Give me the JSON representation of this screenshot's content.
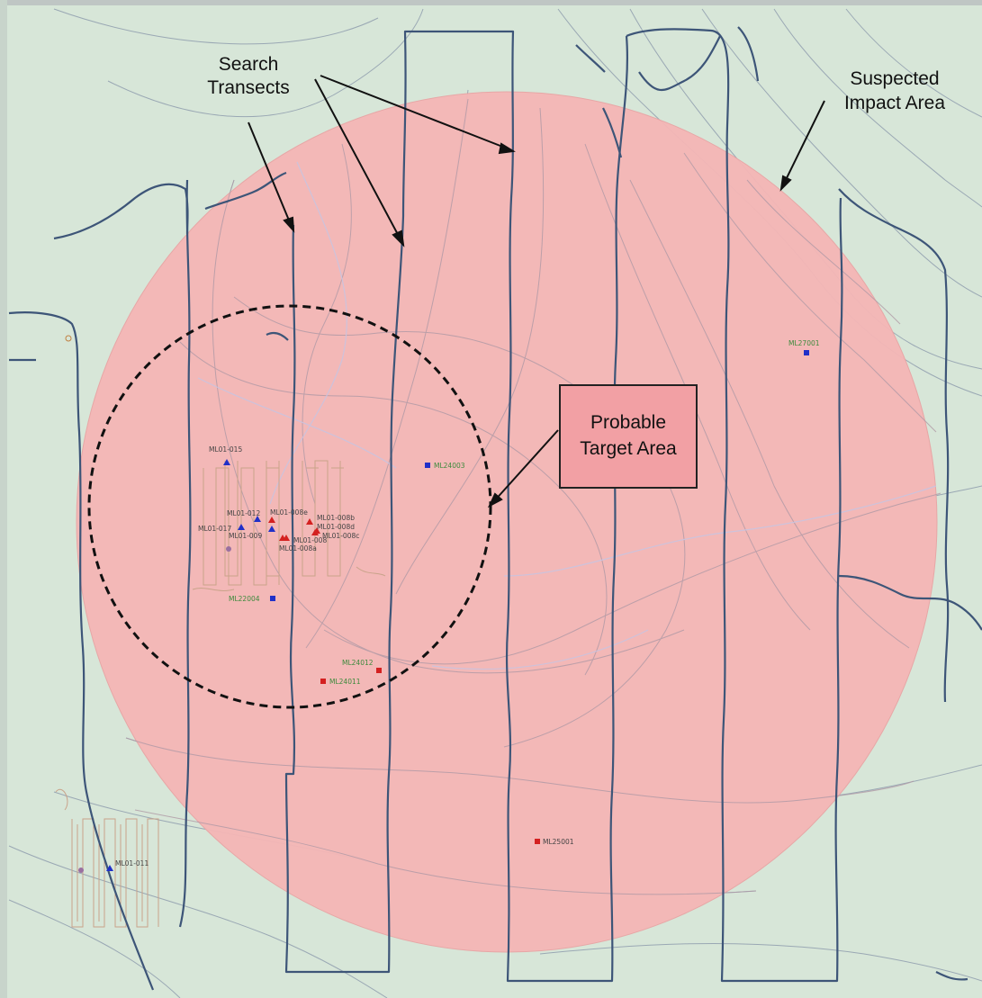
{
  "colors": {
    "background": "#d7e6d8",
    "impact_area_fill": "#f5b6b6",
    "transect_line": "#3d5578",
    "contour_line": "#9aa8b4",
    "grid_trace": "#c9a38a",
    "target_box_fill": "#f2a0a4",
    "point_red": "#d42020",
    "point_blue": "#2030c8",
    "label_green": "#3c8a3c",
    "label_gray": "#444444",
    "label_red": "#a02020"
  },
  "callouts": {
    "search_transects": [
      "Search",
      "Transects"
    ],
    "suspected_impact_area": [
      "Suspected",
      "Impact Area"
    ],
    "probable_target_area": [
      "Probable",
      "Target Area"
    ]
  },
  "features": [
    {
      "id": "ML01-015",
      "label": "ML01-015",
      "symbol": "triangle",
      "color": "blue"
    },
    {
      "id": "ML01-012",
      "label": "ML01-012",
      "symbol": "triangle",
      "color": "blue"
    },
    {
      "id": "ML01-017",
      "label": "ML01-017",
      "symbol": "triangle",
      "color": "blue"
    },
    {
      "id": "ML01-009",
      "label": "ML01-009",
      "symbol": "triangle",
      "color": "blue"
    },
    {
      "id": "ML01-008e",
      "label": "ML01-008e",
      "symbol": "triangle",
      "color": "red"
    },
    {
      "id": "ML01-008b",
      "label": "ML01-008b",
      "symbol": "triangle",
      "color": "red"
    },
    {
      "id": "ML01-008d",
      "label": "ML01-008d",
      "symbol": "triangle",
      "color": "red"
    },
    {
      "id": "ML01-008c",
      "label": "ML01-008c",
      "symbol": "triangle",
      "color": "red"
    },
    {
      "id": "ML01-008",
      "label": "ML01-008",
      "symbol": "triangle",
      "color": "red"
    },
    {
      "id": "ML01-008a",
      "label": "ML01-008a",
      "symbol": "triangle",
      "color": "red"
    },
    {
      "id": "ML01-011",
      "label": "ML01-011",
      "symbol": "triangle",
      "color": "blue"
    },
    {
      "id": "ML24003",
      "label": "ML24003",
      "symbol": "square",
      "color": "blue"
    },
    {
      "id": "ML22004",
      "label": "ML22004",
      "symbol": "square",
      "color": "blue"
    },
    {
      "id": "ML24012",
      "label": "ML24012",
      "symbol": "square",
      "color": "red"
    },
    {
      "id": "ML24011",
      "label": "ML24011",
      "symbol": "square",
      "color": "red"
    },
    {
      "id": "ML27001",
      "label": "ML27001",
      "symbol": "square",
      "color": "blue"
    },
    {
      "id": "ML25001",
      "label": "ML25001",
      "symbol": "square",
      "color": "red"
    }
  ]
}
